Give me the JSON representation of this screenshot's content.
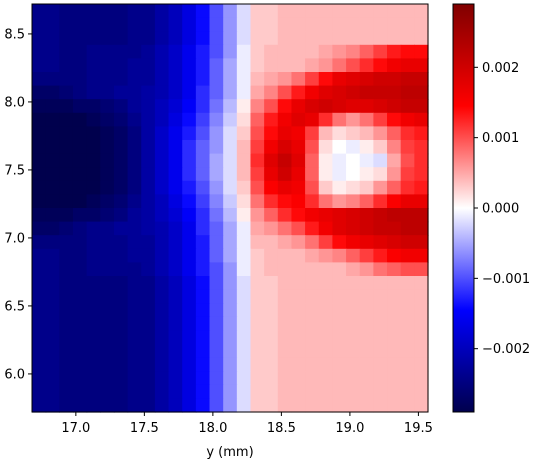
{
  "chart_data": {
    "type": "heatmap",
    "title": "",
    "xlabel": "y (mm)",
    "ylabel": "",
    "xlim": [
      16.68,
      19.57
    ],
    "ylim": [
      5.72,
      8.72
    ],
    "x_ticks": [
      "17.0",
      "17.5",
      "18.0",
      "18.5",
      "19.0",
      "19.5"
    ],
    "y_ticks": [
      "6.0",
      "6.5",
      "7.0",
      "7.5",
      "8.0",
      "8.5"
    ],
    "colormap": "seismic",
    "colorbar": {
      "min": -0.0029,
      "max": 0.0029,
      "ticks": [
        "0.002",
        "0.001",
        "0.000",
        "−0.001",
        "−0.002"
      ],
      "tick_values": [
        0.002,
        0.001,
        0.0,
        -0.001,
        -0.002
      ]
    },
    "grid": false,
    "cell_size": 0.1,
    "values": [
      [
        -0.0024,
        -0.0024,
        -0.0025,
        -0.0025,
        -0.0025,
        -0.0025,
        -0.0025,
        -0.0024,
        -0.0024,
        -0.0022,
        -0.002,
        -0.0017,
        -0.0014,
        -0.001,
        -0.0006,
        -0.0002,
        0.0003,
        0.0003,
        0.0004,
        0.0004,
        0.0004,
        0.0004,
        0.0004,
        0.0004,
        0.0004,
        0.0004,
        0.0004,
        0.0004,
        0.0004
      ],
      [
        -0.0024,
        -0.0024,
        -0.0025,
        -0.0025,
        -0.0025,
        -0.0025,
        -0.0025,
        -0.0024,
        -0.0024,
        -0.0022,
        -0.002,
        -0.0017,
        -0.0014,
        -0.001,
        -0.0006,
        -0.0002,
        0.0003,
        0.0003,
        0.0004,
        0.0004,
        0.0004,
        0.0004,
        0.0004,
        0.0004,
        0.0004,
        0.0004,
        0.0004,
        0.0004,
        0.0004
      ],
      [
        -0.0024,
        -0.0024,
        -0.0025,
        -0.0025,
        -0.0025,
        -0.0025,
        -0.0025,
        -0.0024,
        -0.0024,
        -0.0022,
        -0.002,
        -0.0017,
        -0.0014,
        -0.001,
        -0.0006,
        -0.0002,
        0.0003,
        0.0003,
        0.0004,
        0.0004,
        0.0004,
        0.0004,
        0.0004,
        0.0004,
        0.0004,
        0.0004,
        0.0004,
        0.0004,
        0.0004
      ],
      [
        -0.0024,
        -0.0024,
        -0.0025,
        -0.0025,
        -0.0024,
        -0.0024,
        -0.0024,
        -0.0024,
        -0.0023,
        -0.0021,
        -0.0019,
        -0.0016,
        -0.0013,
        -0.001,
        -0.0006,
        -0.0001,
        0.0003,
        0.0004,
        0.0004,
        0.0004,
        0.0004,
        0.0005,
        0.0006,
        0.0007,
        0.0009,
        0.0011,
        0.0013,
        0.0014,
        0.0014
      ],
      [
        -0.0024,
        -0.0024,
        -0.0025,
        -0.0025,
        -0.0024,
        -0.0024,
        -0.0024,
        -0.0023,
        -0.0023,
        -0.0021,
        -0.0019,
        -0.0016,
        -0.0013,
        -0.0009,
        -0.0005,
        -0.0001,
        0.0003,
        0.0004,
        0.0004,
        0.0004,
        0.0005,
        0.0006,
        0.0008,
        0.001,
        0.0012,
        0.0014,
        0.0016,
        0.0017,
        0.0017
      ],
      [
        -0.0025,
        -0.0025,
        -0.0025,
        -0.0025,
        -0.0024,
        -0.0024,
        -0.0024,
        -0.0023,
        -0.0023,
        -0.0021,
        -0.0019,
        -0.0016,
        -0.0013,
        -0.0009,
        -0.0005,
        -0.0001,
        0.0004,
        0.0005,
        0.0006,
        0.0008,
        0.0011,
        0.0014,
        0.0017,
        0.0018,
        0.0019,
        0.002,
        0.002,
        0.0021,
        0.0021
      ],
      [
        -0.0027,
        -0.0027,
        -0.0026,
        -0.0025,
        -0.0024,
        -0.0024,
        -0.0023,
        -0.0023,
        -0.0022,
        -0.0021,
        -0.0019,
        -0.0016,
        -0.0012,
        -0.0009,
        -0.0005,
        -0.0001,
        0.0005,
        0.0007,
        0.001,
        0.0013,
        0.0016,
        0.0018,
        0.0019,
        0.002,
        0.0021,
        0.0021,
        0.0021,
        0.0022,
        0.0022
      ],
      [
        -0.0028,
        -0.0028,
        -0.0028,
        -0.0027,
        -0.0027,
        -0.0026,
        -0.0025,
        -0.0023,
        -0.0022,
        -0.002,
        -0.0018,
        -0.0015,
        -0.0012,
        -0.0008,
        -0.0004,
        0.0001,
        0.0007,
        0.001,
        0.0014,
        0.0017,
        0.0019,
        0.002,
        0.0019,
        0.0018,
        0.0018,
        0.0019,
        0.002,
        0.0021,
        0.0021
      ],
      [
        -0.0029,
        -0.0029,
        -0.0029,
        -0.0029,
        -0.0028,
        -0.0027,
        -0.0026,
        -0.0024,
        -0.0022,
        -0.002,
        -0.0017,
        -0.0014,
        -0.0011,
        -0.0007,
        -0.0003,
        0.0002,
        0.0009,
        0.0013,
        0.0016,
        0.0018,
        0.0017,
        0.0012,
        0.0008,
        0.0006,
        0.0008,
        0.0011,
        0.0014,
        0.0016,
        0.0017
      ],
      [
        -0.0029,
        -0.0029,
        -0.0029,
        -0.0029,
        -0.0029,
        -0.0028,
        -0.0027,
        -0.0025,
        -0.0022,
        -0.0019,
        -0.0016,
        -0.0013,
        -0.001,
        -0.0006,
        -0.0002,
        0.0003,
        0.001,
        0.0014,
        0.0017,
        0.0016,
        0.0011,
        0.0004,
        0.0002,
        0.0003,
        0.0004,
        0.0006,
        0.0009,
        0.0012,
        0.0013
      ],
      [
        -0.0029,
        -0.0029,
        -0.0029,
        -0.0029,
        -0.0029,
        -0.0028,
        -0.0027,
        -0.0025,
        -0.0022,
        -0.0019,
        -0.0016,
        -0.0012,
        -0.0009,
        -0.0006,
        -0.0002,
        0.0004,
        0.0011,
        0.0016,
        0.0019,
        0.0017,
        0.001,
        0.0002,
        0.0,
        -0.0001,
        0.0001,
        0.0003,
        0.0007,
        0.0011,
        0.0012
      ],
      [
        -0.0029,
        -0.0029,
        -0.0029,
        -0.0029,
        -0.0029,
        -0.0028,
        -0.0027,
        -0.0025,
        -0.0022,
        -0.0019,
        -0.0016,
        -0.0012,
        -0.0009,
        -0.0005,
        -0.0002,
        0.0004,
        0.0012,
        0.0018,
        0.0021,
        0.0018,
        0.0009,
        0.0001,
        -0.0001,
        0.0,
        -0.0001,
        -0.0002,
        0.0005,
        0.001,
        0.0012
      ],
      [
        -0.0029,
        -0.0029,
        -0.0029,
        -0.0029,
        -0.0029,
        -0.0028,
        -0.0027,
        -0.0025,
        -0.0022,
        -0.0019,
        -0.0016,
        -0.0012,
        -0.0009,
        -0.0005,
        -0.0002,
        0.0004,
        0.0011,
        0.0017,
        0.002,
        0.0017,
        0.0009,
        0.0001,
        -0.0001,
        0.0,
        0.0001,
        0.0002,
        0.0006,
        0.0011,
        0.0012
      ],
      [
        -0.0029,
        -0.0029,
        -0.0029,
        -0.0029,
        -0.0029,
        -0.0028,
        -0.0027,
        -0.0025,
        -0.0022,
        -0.0019,
        -0.0016,
        -0.0013,
        -0.001,
        -0.0006,
        -0.0002,
        0.0003,
        0.001,
        0.0015,
        0.0017,
        0.0016,
        0.001,
        0.0003,
        0.0001,
        0.0002,
        0.0003,
        0.0006,
        0.0009,
        0.0012,
        0.0013
      ],
      [
        -0.0029,
        -0.0029,
        -0.0029,
        -0.0029,
        -0.0028,
        -0.0027,
        -0.0026,
        -0.0024,
        -0.0022,
        -0.002,
        -0.0017,
        -0.0014,
        -0.0011,
        -0.0007,
        -0.0003,
        0.0002,
        0.0008,
        0.0012,
        0.0014,
        0.0015,
        0.0012,
        0.0008,
        0.0006,
        0.0007,
        0.0009,
        0.0012,
        0.0015,
        0.0017,
        0.0017
      ],
      [
        -0.0028,
        -0.0028,
        -0.0028,
        -0.0027,
        -0.0027,
        -0.0026,
        -0.0025,
        -0.0023,
        -0.0022,
        -0.002,
        -0.0018,
        -0.0015,
        -0.0012,
        -0.0008,
        -0.0004,
        0.0001,
        0.0006,
        0.0009,
        0.0012,
        0.0014,
        0.0016,
        0.0017,
        0.0018,
        0.0019,
        0.002,
        0.0021,
        0.0022,
        0.0022,
        0.0022
      ],
      [
        -0.0027,
        -0.0027,
        -0.0026,
        -0.0025,
        -0.0024,
        -0.0024,
        -0.0023,
        -0.0023,
        -0.0022,
        -0.0021,
        -0.0019,
        -0.0016,
        -0.0012,
        -0.0009,
        -0.0005,
        -0.0001,
        0.0005,
        0.0006,
        0.0008,
        0.001,
        0.0013,
        0.0016,
        0.0018,
        0.0019,
        0.002,
        0.0021,
        0.0021,
        0.0022,
        0.0022
      ],
      [
        -0.0025,
        -0.0025,
        -0.0025,
        -0.0025,
        -0.0024,
        -0.0024,
        -0.0024,
        -0.0023,
        -0.0023,
        -0.0021,
        -0.0019,
        -0.0016,
        -0.0013,
        -0.0009,
        -0.0005,
        -0.0001,
        0.0004,
        0.0004,
        0.0005,
        0.0006,
        0.0008,
        0.0011,
        0.0014,
        0.0016,
        0.0017,
        0.0018,
        0.0019,
        0.002,
        0.002
      ],
      [
        -0.0024,
        -0.0024,
        -0.0025,
        -0.0025,
        -0.0024,
        -0.0024,
        -0.0024,
        -0.0023,
        -0.0023,
        -0.0021,
        -0.0019,
        -0.0016,
        -0.0013,
        -0.0009,
        -0.0005,
        -0.0001,
        0.0003,
        0.0004,
        0.0004,
        0.0004,
        0.0005,
        0.0006,
        0.0007,
        0.0009,
        0.0011,
        0.0013,
        0.0015,
        0.0016,
        0.0016
      ],
      [
        -0.0024,
        -0.0024,
        -0.0025,
        -0.0025,
        -0.0024,
        -0.0024,
        -0.0024,
        -0.0024,
        -0.0023,
        -0.0021,
        -0.0019,
        -0.0016,
        -0.0013,
        -0.001,
        -0.0006,
        -0.0001,
        0.0003,
        0.0004,
        0.0004,
        0.0004,
        0.0004,
        0.0004,
        0.0004,
        0.0005,
        0.0006,
        0.0008,
        0.0009,
        0.001,
        0.001
      ],
      [
        -0.0024,
        -0.0024,
        -0.0025,
        -0.0025,
        -0.0025,
        -0.0025,
        -0.0025,
        -0.0024,
        -0.0024,
        -0.0022,
        -0.002,
        -0.0017,
        -0.0014,
        -0.001,
        -0.0006,
        -0.0002,
        0.0003,
        0.0003,
        0.0004,
        0.0004,
        0.0004,
        0.0004,
        0.0004,
        0.0004,
        0.0004,
        0.0004,
        0.0004,
        0.0004,
        0.0004
      ],
      [
        -0.0024,
        -0.0024,
        -0.0025,
        -0.0025,
        -0.0025,
        -0.0025,
        -0.0025,
        -0.0024,
        -0.0024,
        -0.0022,
        -0.002,
        -0.0017,
        -0.0014,
        -0.001,
        -0.0006,
        -0.0002,
        0.0003,
        0.0003,
        0.0004,
        0.0004,
        0.0004,
        0.0004,
        0.0004,
        0.0004,
        0.0004,
        0.0004,
        0.0004,
        0.0004,
        0.0004
      ],
      [
        -0.0024,
        -0.0024,
        -0.0025,
        -0.0025,
        -0.0025,
        -0.0025,
        -0.0025,
        -0.0024,
        -0.0024,
        -0.0022,
        -0.002,
        -0.0017,
        -0.0014,
        -0.001,
        -0.0006,
        -0.0002,
        0.0003,
        0.0003,
        0.0004,
        0.0004,
        0.0004,
        0.0004,
        0.0004,
        0.0004,
        0.0004,
        0.0004,
        0.0004,
        0.0004,
        0.0004
      ],
      [
        -0.0024,
        -0.0024,
        -0.0025,
        -0.0025,
        -0.0025,
        -0.0025,
        -0.0025,
        -0.0024,
        -0.0024,
        -0.0022,
        -0.002,
        -0.0017,
        -0.0014,
        -0.001,
        -0.0006,
        -0.0002,
        0.0003,
        0.0003,
        0.0004,
        0.0004,
        0.0004,
        0.0004,
        0.0004,
        0.0004,
        0.0004,
        0.0004,
        0.0004,
        0.0004,
        0.0004
      ],
      [
        -0.0024,
        -0.0024,
        -0.0025,
        -0.0025,
        -0.0025,
        -0.0025,
        -0.0025,
        -0.0024,
        -0.0024,
        -0.0022,
        -0.002,
        -0.0017,
        -0.0014,
        -0.001,
        -0.0006,
        -0.0002,
        0.0003,
        0.0003,
        0.0004,
        0.0004,
        0.0004,
        0.0004,
        0.0004,
        0.0004,
        0.0004,
        0.0004,
        0.0004,
        0.0004,
        0.0004
      ],
      [
        -0.0024,
        -0.0024,
        -0.0025,
        -0.0025,
        -0.0025,
        -0.0025,
        -0.0025,
        -0.0024,
        -0.0024,
        -0.0022,
        -0.002,
        -0.0017,
        -0.0014,
        -0.001,
        -0.0006,
        -0.0002,
        0.0003,
        0.0003,
        0.0004,
        0.0004,
        0.0004,
        0.0004,
        0.0004,
        0.0004,
        0.0004,
        0.0004,
        0.0004,
        0.0004,
        0.0004
      ],
      [
        -0.0024,
        -0.0024,
        -0.0025,
        -0.0025,
        -0.0025,
        -0.0025,
        -0.0025,
        -0.0024,
        -0.0024,
        -0.0022,
        -0.002,
        -0.0017,
        -0.0014,
        -0.001,
        -0.0006,
        -0.0002,
        0.0003,
        0.0003,
        0.0004,
        0.0004,
        0.0004,
        0.0004,
        0.0004,
        0.0004,
        0.0004,
        0.0004,
        0.0004,
        0.0004,
        0.0004
      ],
      [
        -0.0024,
        -0.0024,
        -0.0025,
        -0.0025,
        -0.0025,
        -0.0025,
        -0.0025,
        -0.0024,
        -0.0024,
        -0.0022,
        -0.002,
        -0.0017,
        -0.0014,
        -0.001,
        -0.0006,
        -0.0002,
        0.0003,
        0.0003,
        0.0004,
        0.0004,
        0.0004,
        0.0004,
        0.0004,
        0.0004,
        0.0004,
        0.0004,
        0.0004,
        0.0004,
        0.0004
      ],
      [
        -0.0024,
        -0.0024,
        -0.0025,
        -0.0025,
        -0.0025,
        -0.0025,
        -0.0025,
        -0.0024,
        -0.0024,
        -0.0022,
        -0.002,
        -0.0017,
        -0.0014,
        -0.001,
        -0.0006,
        -0.0002,
        0.0003,
        0.0003,
        0.0004,
        0.0004,
        0.0004,
        0.0004,
        0.0004,
        0.0004,
        0.0004,
        0.0004,
        0.0004,
        0.0004,
        0.0004
      ],
      [
        -0.0024,
        -0.0024,
        -0.0025,
        -0.0025,
        -0.0025,
        -0.0025,
        -0.0025,
        -0.0024,
        -0.0024,
        -0.0022,
        -0.002,
        -0.0017,
        -0.0014,
        -0.001,
        -0.0006,
        -0.0002,
        0.0003,
        0.0003,
        0.0004,
        0.0004,
        0.0004,
        0.0004,
        0.0004,
        0.0004,
        0.0004,
        0.0004,
        0.0004,
        0.0004,
        0.0004
      ]
    ]
  }
}
